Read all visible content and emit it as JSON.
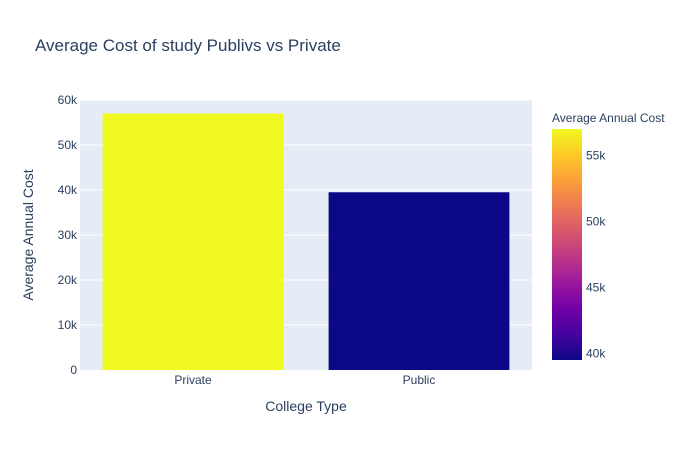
{
  "chart_data": {
    "type": "bar",
    "title": "Average Cost of study Publivs vs Private",
    "xlabel": "College Type",
    "ylabel": "Average Annual Cost",
    "categories": [
      "Private",
      "Public"
    ],
    "values": [
      57000,
      39500
    ],
    "ylim": [
      0,
      60000
    ],
    "yticks": [
      0,
      10000,
      20000,
      30000,
      40000,
      50000,
      60000
    ],
    "ytick_labels": [
      "0",
      "10k",
      "20k",
      "30k",
      "40k",
      "50k",
      "60k"
    ],
    "grid": true,
    "colorbar": {
      "title": "Average Annual Cost",
      "range": [
        39500,
        57000
      ],
      "ticks": [
        40000,
        45000,
        50000,
        55000
      ],
      "tick_labels": [
        "40k",
        "45k",
        "50k",
        "55k"
      ],
      "colorscale": [
        "#0d0887",
        "#46039f",
        "#7201a8",
        "#9c179e",
        "#bd3786",
        "#d8576b",
        "#ed7953",
        "#fb9f3a",
        "#fdca26",
        "#f0f921"
      ]
    },
    "colors": {
      "plot_background": "#e5ecf6",
      "gridline": "#ffffff",
      "text": "#2a3f5f"
    }
  }
}
